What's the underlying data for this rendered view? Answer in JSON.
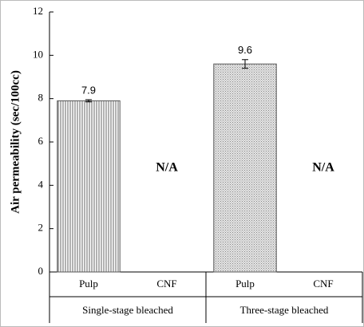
{
  "chart_data": {
    "type": "bar",
    "y_label": "Air permeability (sec/100cc)",
    "categories": [
      "Pulp",
      "CNF",
      "Pulp",
      "CNF"
    ],
    "groups": [
      "Single-stage bleached",
      "Three-stage bleached"
    ],
    "values": [
      7.9,
      null,
      9.6,
      null
    ],
    "errors": [
      0.05,
      null,
      0.2,
      null
    ],
    "value_labels": [
      "7.9",
      "N/A",
      "9.6",
      "N/A"
    ],
    "fills": [
      "stripes",
      null,
      "dots",
      null
    ],
    "ylim": [
      0,
      12
    ],
    "yticks": [
      0,
      2,
      4,
      6,
      8,
      10,
      12
    ],
    "grid": false
  }
}
